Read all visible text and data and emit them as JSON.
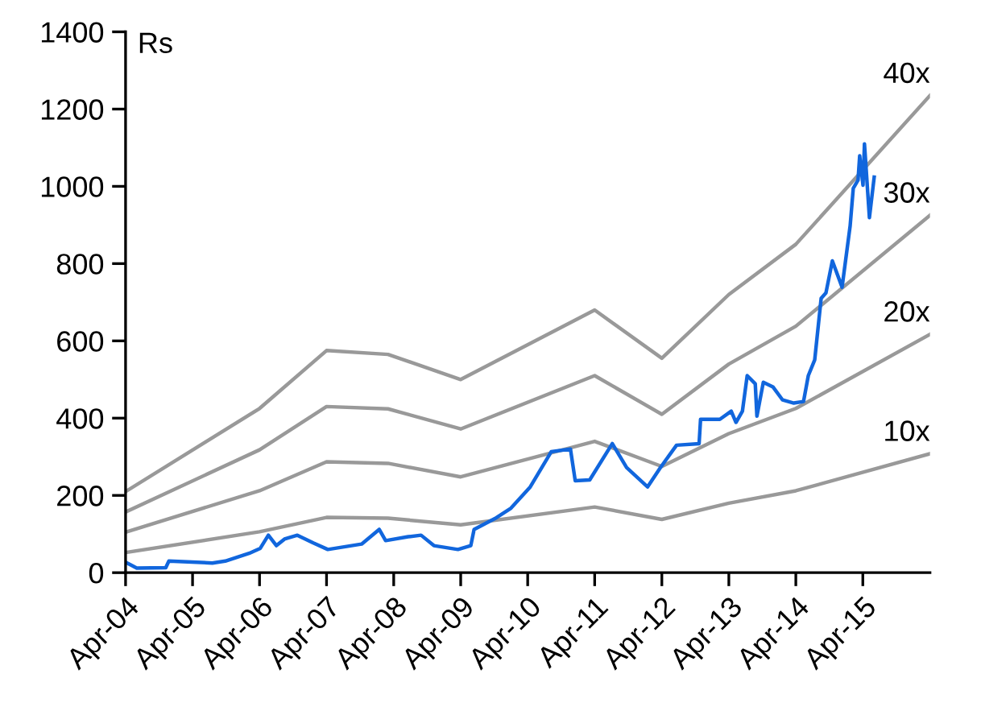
{
  "chart_data": {
    "type": "line",
    "ylabel": "Rs",
    "xlim": [
      "2004-04",
      "2016-04"
    ],
    "xticks": [
      {
        "value": "2004-04",
        "label": "Apr-04"
      },
      {
        "value": "2005-04",
        "label": "Apr-05"
      },
      {
        "value": "2006-04",
        "label": "Apr-06"
      },
      {
        "value": "2007-04",
        "label": "Apr-07"
      },
      {
        "value": "2008-04",
        "label": "Apr-08"
      },
      {
        "value": "2009-04",
        "label": "Apr-09"
      },
      {
        "value": "2010-04",
        "label": "Apr-10"
      },
      {
        "value": "2011-04",
        "label": "Apr-11"
      },
      {
        "value": "2012-04",
        "label": "Apr-12"
      },
      {
        "value": "2013-04",
        "label": "Apr-13"
      },
      {
        "value": "2014-04",
        "label": "Apr-14"
      },
      {
        "value": "2015-04",
        "label": "Apr-15"
      }
    ],
    "ylim": [
      0,
      1400
    ],
    "yticks": [
      0,
      200,
      400,
      600,
      800,
      1000,
      1200,
      1400
    ],
    "grid": false,
    "legend": false,
    "marker": "none",
    "line_style": "solid",
    "series": [
      {
        "name": "40x",
        "color": "#999999",
        "x": [
          "2004-04",
          "2006-04",
          "2007-04",
          "2008-03",
          "2009-04",
          "2011-04",
          "2012-04",
          "2013-04",
          "2014-04",
          "2016-04"
        ],
        "values": [
          210,
          425,
          575,
          565,
          500,
          680,
          555,
          720,
          850,
          1235
        ]
      },
      {
        "name": "30x",
        "color": "#999999",
        "x": [
          "2004-04",
          "2006-04",
          "2007-04",
          "2008-03",
          "2009-04",
          "2011-04",
          "2012-04",
          "2013-04",
          "2014-04",
          "2016-04"
        ],
        "values": [
          157,
          318,
          430,
          424,
          372,
          510,
          410,
          540,
          638,
          925
        ]
      },
      {
        "name": "20x",
        "color": "#999999",
        "x": [
          "2004-04",
          "2006-04",
          "2007-04",
          "2008-03",
          "2009-04",
          "2011-04",
          "2012-04",
          "2013-04",
          "2014-04",
          "2016-04"
        ],
        "values": [
          105,
          212,
          287,
          283,
          248,
          340,
          275,
          360,
          425,
          617
        ]
      },
      {
        "name": "10x",
        "color": "#999999",
        "x": [
          "2004-04",
          "2006-04",
          "2007-04",
          "2008-03",
          "2009-04",
          "2011-04",
          "2012-04",
          "2013-04",
          "2014-04",
          "2016-04"
        ],
        "values": [
          52,
          106,
          143,
          141,
          124,
          170,
          138,
          180,
          212,
          308
        ]
      },
      {
        "color": "#1166dd",
        "x": [
          "2004-04-10",
          "2004-06-01",
          "2004-11-06",
          "2004-11-23",
          "2005-07-18",
          "2005-09-26",
          "2006-02-03",
          "2006-04-05",
          "2006-05-19",
          "2006-07-02",
          "2006-08-15",
          "2006-10-24",
          "2007-01-19",
          "2007-04-08",
          "2007-10-09",
          "2008-01-13",
          "2008-02-17",
          "2008-06-19",
          "2008-08-28",
          "2008-11-06",
          "2009-03-17",
          "2009-05-26",
          "2009-06-13",
          "2009-10-04",
          "2009-12-31",
          "2010-04-15",
          "2010-08-07",
          "2010-11-20",
          "2010-12-16",
          "2011-03-05",
          "2011-07-06",
          "2011-09-22",
          "2012-01-14",
          "2012-03-24",
          "2012-06-20",
          "2012-10-21",
          "2012-10-29",
          "2013-02-11",
          "2013-04-14",
          "2013-05-10",
          "2013-06-14",
          "2013-07-10",
          "2013-08-23",
          "2013-09-01",
          "2013-10-06",
          "2013-11-27",
          "2014-01-19",
          "2014-03-21",
          "2014-05-13",
          "2014-06-08",
          "2014-07-13",
          "2014-08-17",
          "2014-09-12",
          "2014-10-17",
          "2014-12-09",
          "2015-01-22",
          "2015-02-08",
          "2015-03-06",
          "2015-03-15",
          "2015-04-02",
          "2015-04-10",
          "2015-05-07",
          "2015-06-02"
        ],
        "values": [
          25,
          12,
          13,
          30,
          25,
          30,
          50,
          63,
          97,
          70,
          87,
          97,
          77,
          60,
          74,
          112,
          83,
          93,
          97,
          70,
          60,
          70,
          112,
          140,
          167,
          222,
          313,
          320,
          238,
          240,
          334,
          272,
          222,
          272,
          330,
          334,
          397,
          397,
          418,
          389,
          418,
          510,
          489,
          405,
          493,
          481,
          447,
          439,
          443,
          510,
          551,
          710,
          724,
          807,
          739,
          898,
          995,
          1016,
          1079,
          1003,
          1110,
          919,
          1024
        ]
      }
    ]
  }
}
